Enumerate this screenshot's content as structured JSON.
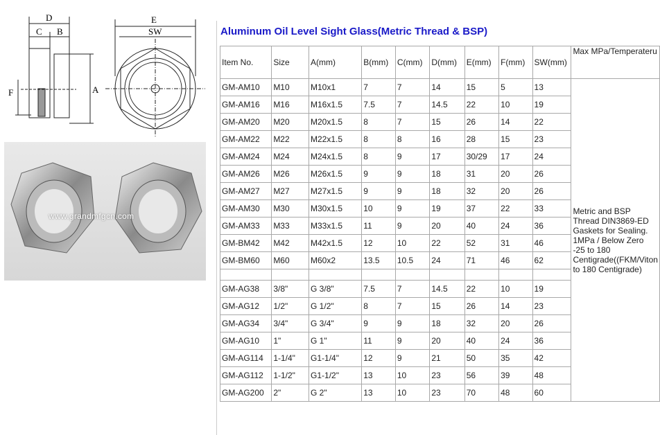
{
  "title": "Aluminum Oil Level Sight Glass(Metric Thread & BSP)",
  "drawing": {
    "labels": [
      "D",
      "C",
      "B",
      "E",
      "SW",
      "A",
      "F"
    ]
  },
  "photo": {
    "watermark": "www.grandmfgcn.com"
  },
  "table": {
    "headers": [
      "Item No.",
      "Size",
      "A(mm)",
      "B(mm)",
      "C(mm)",
      "D(mm)",
      "E(mm)",
      "F(mm)",
      "SW(mm)",
      "Max MPa/Temperateru"
    ],
    "note": "Metric and BSP Thread DIN3869-ED Gaskets for Sealing.  1MPa  /  Below Zero -25 to 180 Centigrade((FKM/Viton to 180 Centigrade)",
    "metric_rows": [
      [
        "GM-AM10",
        "M10",
        "M10x1",
        "7",
        "7",
        "14",
        "15",
        "5",
        "13"
      ],
      [
        "GM-AM16",
        "M16",
        "M16x1.5",
        "7.5",
        "7",
        "14.5",
        "22",
        "10",
        "19"
      ],
      [
        "GM-AM20",
        "M20",
        "M20x1.5",
        "8",
        "7",
        "15",
        "26",
        "14",
        "22"
      ],
      [
        "GM-AM22",
        "M22",
        "M22x1.5",
        "8",
        "8",
        "16",
        "28",
        "15",
        "23"
      ],
      [
        "GM-AM24",
        "M24",
        "M24x1.5",
        "8",
        "9",
        "17",
        "30/29",
        "17",
        "24"
      ],
      [
        "GM-AM26",
        "M26",
        "M26x1.5",
        "9",
        "9",
        "18",
        "31",
        "20",
        "26"
      ],
      [
        "GM-AM27",
        "M27",
        "M27x1.5",
        "9",
        "9",
        "18",
        "32",
        "20",
        "26"
      ],
      [
        "GM-AM30",
        "M30",
        "M30x1.5",
        "10",
        "9",
        "19",
        "37",
        "22",
        "33"
      ],
      [
        "GM-AM33",
        "M33",
        "M33x1.5",
        "11",
        "9",
        "20",
        "40",
        "24",
        "36"
      ],
      [
        "GM-BM42",
        "M42",
        "M42x1.5",
        "12",
        "10",
        "22",
        "52",
        "31",
        "46"
      ],
      [
        "GM-BM60",
        "M60",
        "M60x2",
        "13.5",
        "10.5",
        "24",
        "71",
        "46",
        "62"
      ]
    ],
    "bsp_rows": [
      [
        "GM-AG38",
        "3/8\"",
        "G 3/8\"",
        "7.5",
        "7",
        "14.5",
        "22",
        "10",
        "19"
      ],
      [
        "GM-AG12",
        "1/2\"",
        "G 1/2\"",
        "8",
        "7",
        "15",
        "26",
        "14",
        "23"
      ],
      [
        "GM-AG34",
        "3/4\"",
        "G 3/4\"",
        "9",
        "9",
        "18",
        "32",
        "20",
        "26"
      ],
      [
        "GM-AG10",
        "1\"",
        "G 1\"",
        "11",
        "9",
        "20",
        "40",
        "24",
        "36"
      ],
      [
        "GM-AG114",
        "1-1/4\"",
        "G1-1/4\"",
        "12",
        "9",
        "21",
        "50",
        "35",
        "42"
      ],
      [
        "GM-AG112",
        "1-1/2\"",
        "G1-1/2\"",
        "13",
        "10",
        "23",
        "56",
        "39",
        "48"
      ],
      [
        "GM-AG200",
        "2\"",
        "G 2\"",
        "13",
        "10",
        "23",
        "70",
        "48",
        "60"
      ]
    ]
  }
}
